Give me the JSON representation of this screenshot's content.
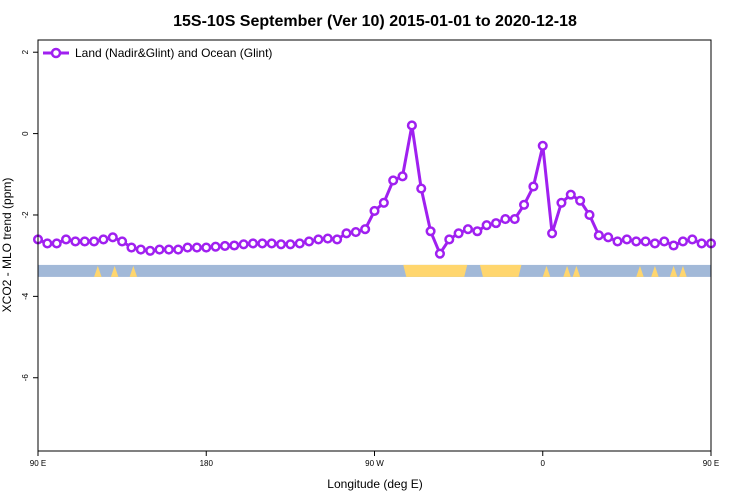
{
  "chart_data": {
    "type": "line",
    "title": "15S-10S September (Ver 10)   2015-01-01 to 2020-12-18",
    "xlabel": "Longitude (deg E)",
    "ylabel": "XCO2 - MLO trend (ppm)",
    "xlim": [
      90,
      450
    ],
    "ylim": [
      -7.8,
      2.3
    ],
    "x_ticks": [
      {
        "value": 90,
        "label": "90 E"
      },
      {
        "value": 180,
        "label": "180"
      },
      {
        "value": 270,
        "label": "90 W"
      },
      {
        "value": 360,
        "label": "0"
      },
      {
        "value": 450,
        "label": "90 E"
      }
    ],
    "y_ticks": [
      {
        "value": 2,
        "label": "2"
      },
      {
        "value": 0,
        "label": "0"
      },
      {
        "value": -2,
        "label": "-2"
      },
      {
        "value": -4,
        "label": "-4"
      },
      {
        "value": -6,
        "label": "-6"
      }
    ],
    "grid": false,
    "legend_position": "top-left",
    "series": [
      {
        "name": "Land (Nadir&Glint) and Ocean (Glint)",
        "color": "#a020f0",
        "marker": "open-circle",
        "x": [
          90,
          95,
          100,
          105,
          110,
          115,
          120,
          125,
          130,
          135,
          140,
          145,
          150,
          155,
          160,
          165,
          170,
          175,
          180,
          185,
          190,
          195,
          200,
          205,
          210,
          215,
          220,
          225,
          230,
          235,
          240,
          245,
          250,
          255,
          260,
          265,
          270,
          275,
          280,
          285,
          290,
          295,
          300,
          305,
          310,
          315,
          320,
          325,
          330,
          335,
          340,
          345,
          350,
          355,
          360,
          365,
          370,
          375,
          380,
          385,
          390,
          395,
          400,
          405,
          410,
          415,
          420,
          425,
          430,
          435,
          440,
          445,
          450
        ],
        "y": [
          -2.6,
          -2.7,
          -2.7,
          -2.6,
          -2.65,
          -2.65,
          -2.65,
          -2.6,
          -2.55,
          -2.65,
          -2.8,
          -2.85,
          -2.88,
          -2.85,
          -2.85,
          -2.85,
          -2.8,
          -2.8,
          -2.8,
          -2.78,
          -2.76,
          -2.75,
          -2.72,
          -2.7,
          -2.7,
          -2.7,
          -2.72,
          -2.72,
          -2.7,
          -2.65,
          -2.6,
          -2.58,
          -2.6,
          -2.45,
          -2.42,
          -2.35,
          -1.9,
          -1.7,
          -1.15,
          -1.05,
          0.2,
          -1.35,
          -2.4,
          -2.95,
          -2.6,
          -2.45,
          -2.35,
          -2.4,
          -2.25,
          -2.2,
          -2.1,
          -2.1,
          -1.75,
          -1.3,
          -0.3,
          -2.45,
          -1.7,
          -1.5,
          -1.65,
          -2.0,
          -2.5,
          -2.55,
          -2.65,
          -2.6,
          -2.65,
          -2.65,
          -2.7,
          -2.65,
          -2.75,
          -2.65,
          -2.6,
          -2.7,
          -2.7
        ]
      }
    ],
    "surface_band": {
      "y": -3.35,
      "ocean_color": "#a2b9d8",
      "land_color": "#ffd66e"
    }
  }
}
